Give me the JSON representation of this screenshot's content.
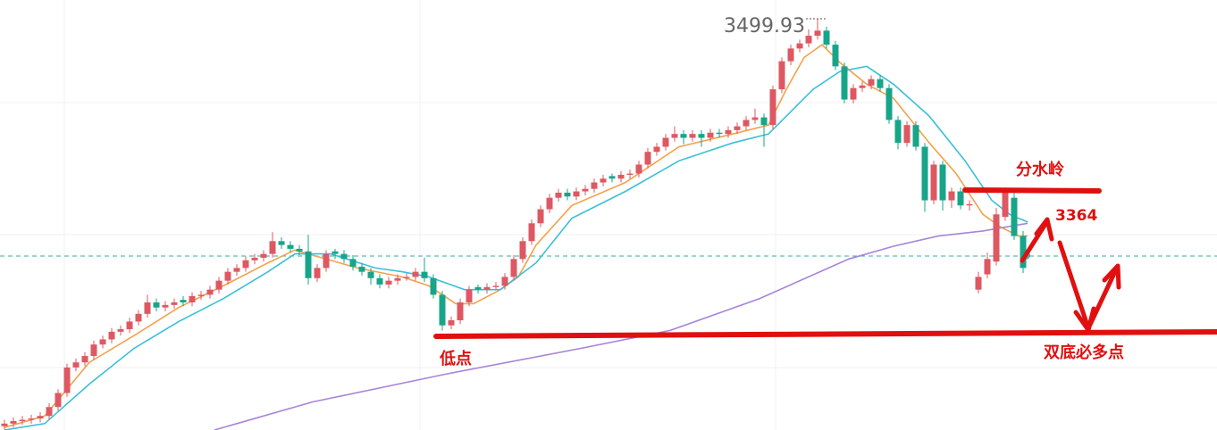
{
  "chart_data": {
    "type": "candlestick",
    "ylim": [
      3178,
      3515
    ],
    "xlim": [
      -0.5,
      135.7
    ],
    "up_color": "#dd5862",
    "down_color": "#17a58a",
    "candles": [
      [
        3181,
        3186,
        3178,
        3183
      ],
      [
        3183,
        3188,
        3180,
        3185
      ],
      [
        3185,
        3189,
        3182,
        3186
      ],
      [
        3186,
        3190,
        3183,
        3187
      ],
      [
        3187,
        3192,
        3184,
        3189
      ],
      [
        3189,
        3199,
        3186,
        3196
      ],
      [
        3196,
        3210,
        3193,
        3207
      ],
      [
        3207,
        3230,
        3204,
        3227
      ],
      [
        3227,
        3234,
        3224,
        3231
      ],
      [
        3231,
        3239,
        3228,
        3236
      ],
      [
        3236,
        3248,
        3233,
        3245
      ],
      [
        3245,
        3252,
        3242,
        3249
      ],
      [
        3249,
        3258,
        3246,
        3255
      ],
      [
        3255,
        3260,
        3252,
        3257
      ],
      [
        3257,
        3266,
        3254,
        3263
      ],
      [
        3263,
        3272,
        3260,
        3269
      ],
      [
        3269,
        3284,
        3266,
        3278
      ],
      [
        3278,
        3281,
        3271,
        3274
      ],
      [
        3274,
        3279,
        3271,
        3276
      ],
      [
        3276,
        3281,
        3273,
        3278
      ],
      [
        3280,
        3283,
        3275,
        3278
      ],
      [
        3278,
        3286,
        3275,
        3283
      ],
      [
        3283,
        3287,
        3280,
        3284
      ],
      [
        3284,
        3291,
        3281,
        3288
      ],
      [
        3288,
        3298,
        3285,
        3295
      ],
      [
        3295,
        3305,
        3292,
        3302
      ],
      [
        3302,
        3308,
        3299,
        3305
      ],
      [
        3305,
        3314,
        3302,
        3311
      ],
      [
        3311,
        3316,
        3308,
        3313
      ],
      [
        3313,
        3319,
        3310,
        3316
      ],
      [
        3316,
        3333,
        3313,
        3326
      ],
      [
        3326,
        3329,
        3320,
        3323
      ],
      [
        3323,
        3326,
        3317,
        3320
      ],
      [
        3320,
        3323,
        3315,
        3318
      ],
      [
        3318,
        3331,
        3292,
        3297
      ],
      [
        3297,
        3308,
        3294,
        3305
      ],
      [
        3305,
        3319,
        3302,
        3316
      ],
      [
        3318,
        3320,
        3312,
        3316
      ],
      [
        3316,
        3319,
        3309,
        3312
      ],
      [
        3312,
        3315,
        3303,
        3306
      ],
      [
        3306,
        3309,
        3299,
        3302
      ],
      [
        3302,
        3305,
        3292,
        3297
      ],
      [
        3297,
        3300,
        3289,
        3292
      ],
      [
        3292,
        3298,
        3289,
        3295
      ],
      [
        3295,
        3300,
        3292,
        3297
      ],
      [
        3297,
        3301,
        3295,
        3298
      ],
      [
        3298,
        3305,
        3295,
        3302
      ],
      [
        3302,
        3313,
        3294,
        3297
      ],
      [
        3297,
        3300,
        3281,
        3284
      ],
      [
        3284,
        3287,
        3256,
        3260
      ],
      [
        3260,
        3267,
        3257,
        3264
      ],
      [
        3264,
        3281,
        3261,
        3278
      ],
      [
        3278,
        3291,
        3275,
        3288
      ],
      [
        3290,
        3292,
        3285,
        3288
      ],
      [
        3288,
        3293,
        3285,
        3290
      ],
      [
        3290,
        3294,
        3288,
        3291
      ],
      [
        3291,
        3301,
        3288,
        3298
      ],
      [
        3298,
        3315,
        3295,
        3312
      ],
      [
        3312,
        3329,
        3309,
        3326
      ],
      [
        3326,
        3343,
        3323,
        3340
      ],
      [
        3340,
        3354,
        3337,
        3351
      ],
      [
        3351,
        3363,
        3348,
        3360
      ],
      [
        3360,
        3367,
        3357,
        3364
      ],
      [
        3364,
        3367,
        3358,
        3361
      ],
      [
        3361,
        3368,
        3358,
        3365
      ],
      [
        3365,
        3370,
        3362,
        3367
      ],
      [
        3367,
        3375,
        3364,
        3372
      ],
      [
        3372,
        3378,
        3369,
        3375
      ],
      [
        3377,
        3379,
        3372,
        3375
      ],
      [
        3375,
        3381,
        3372,
        3378
      ],
      [
        3378,
        3382,
        3375,
        3379
      ],
      [
        3379,
        3389,
        3376,
        3386
      ],
      [
        3386,
        3399,
        3383,
        3396
      ],
      [
        3396,
        3403,
        3393,
        3400
      ],
      [
        3400,
        3410,
        3397,
        3407
      ],
      [
        3407,
        3416,
        3404,
        3410
      ],
      [
        3410,
        3413,
        3402,
        3407
      ],
      [
        3407,
        3413,
        3404,
        3410
      ],
      [
        3410,
        3413,
        3400,
        3407
      ],
      [
        3407,
        3414,
        3404,
        3411
      ],
      [
        3411,
        3414,
        3407,
        3410
      ],
      [
        3410,
        3416,
        3407,
        3413
      ],
      [
        3413,
        3419,
        3410,
        3416
      ],
      [
        3416,
        3424,
        3413,
        3421
      ],
      [
        3421,
        3430,
        3418,
        3423
      ],
      [
        3423,
        3426,
        3400,
        3417
      ],
      [
        3417,
        3448,
        3414,
        3445
      ],
      [
        3445,
        3470,
        3442,
        3467
      ],
      [
        3467,
        3480,
        3464,
        3477
      ],
      [
        3477,
        3484,
        3474,
        3481
      ],
      [
        3481,
        3492,
        3478,
        3487
      ],
      [
        3487,
        3499.93,
        3484,
        3491
      ],
      [
        3491,
        3494,
        3477,
        3480
      ],
      [
        3480,
        3483,
        3460,
        3463
      ],
      [
        3463,
        3466,
        3434,
        3437
      ],
      [
        3437,
        3449,
        3434,
        3446
      ],
      [
        3446,
        3451,
        3443,
        3448
      ],
      [
        3448,
        3456,
        3445,
        3453
      ],
      [
        3453,
        3456,
        3443,
        3446
      ],
      [
        3446,
        3449,
        3418,
        3421
      ],
      [
        3421,
        3424,
        3398,
        3403
      ],
      [
        3403,
        3420,
        3400,
        3417
      ],
      [
        3417,
        3420,
        3397,
        3400
      ],
      [
        3400,
        3403,
        3349,
        3358
      ],
      [
        3358,
        3389,
        3355,
        3386
      ],
      [
        3386,
        3389,
        3350,
        3358
      ],
      [
        3358,
        3368,
        3352,
        3365
      ],
      [
        3365,
        3368,
        3351,
        3354
      ],
      [
        3354,
        3358,
        3350,
        3355
      ],
      [
        3288,
        3302,
        3285,
        3298
      ],
      [
        3300,
        3317,
        3297,
        3312
      ],
      [
        3310,
        3352,
        3307,
        3347
      ],
      [
        3345,
        3368,
        3342,
        3364
      ],
      [
        3360,
        3366,
        3327,
        3330
      ],
      [
        3330,
        3334,
        3301,
        3305
      ]
    ],
    "lines": [
      {
        "color": "#f4a14a",
        "x": [
          0,
          4.5,
          9.5,
          14.5,
          19.5,
          24.5,
          29.5,
          32.5,
          35.5,
          39.5,
          44.5,
          47.5,
          50.5,
          52.5,
          55.5,
          57.5,
          59.5,
          63.5,
          69.5,
          75.5,
          81.5,
          85.5,
          87.5,
          89.5,
          91.5,
          93.5,
          96.5,
          99.5,
          103.5,
          106.5,
          109.5,
          111.5,
          113.5,
          114.5
        ],
        "values": [
          3180,
          3189,
          3231,
          3252,
          3274,
          3291,
          3309,
          3319,
          3313,
          3305,
          3298,
          3291,
          3277,
          3277,
          3288,
          3298,
          3323,
          3354,
          3372,
          3400,
          3410,
          3417,
          3445,
          3470,
          3480,
          3466,
          3449,
          3438,
          3403,
          3379,
          3347,
          3337,
          3330,
          3330
        ]
      },
      {
        "color": "#3bbfd6",
        "x": [
          0,
          4.5,
          9.5,
          14.5,
          19.5,
          24.5,
          29.5,
          32.5,
          36.5,
          41.5,
          44.5,
          47.5,
          51.5,
          55.5,
          59.5,
          63.5,
          69.5,
          75.5,
          81.5,
          85.5,
          87.5,
          90.5,
          93.5,
          96.5,
          99.5,
          103.5,
          107.5,
          110.5,
          112.5,
          114.5
        ],
        "values": [
          3178,
          3183,
          3214,
          3242,
          3263,
          3281,
          3302,
          3316,
          3316,
          3305,
          3302,
          3298,
          3288,
          3288,
          3309,
          3344,
          3365,
          3389,
          3403,
          3410,
          3424,
          3445,
          3459,
          3463,
          3449,
          3424,
          3389,
          3358,
          3347,
          3341
        ]
      },
      {
        "color": "#a884d8",
        "x": [
          23.5,
          34.5,
          49.5,
          64.5,
          74.5,
          84.5,
          94.5,
          99.5,
          104.5,
          109.5,
          114.5
        ],
        "values": [
          3178,
          3200,
          3222,
          3242,
          3256,
          3281,
          3312,
          3322,
          3330,
          3334,
          3340
        ]
      }
    ],
    "annotations": {
      "high": "3499.93",
      "divide": "分水岭",
      "divide_level": "3364",
      "low": "低点",
      "double_bottom": "双底必多点"
    }
  }
}
